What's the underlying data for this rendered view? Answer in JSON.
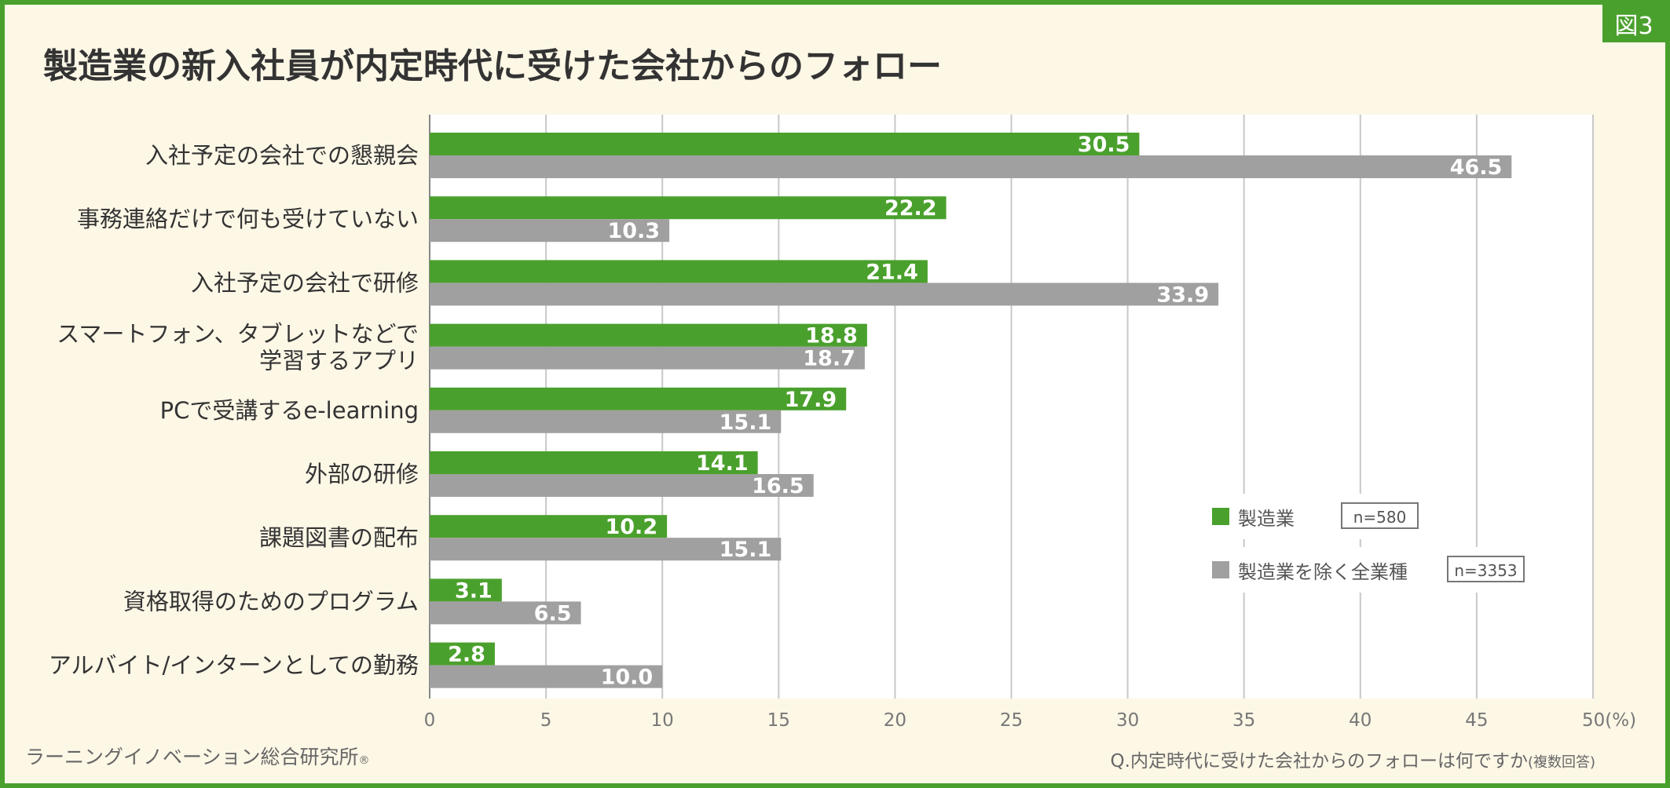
{
  "figure_tag": "図3",
  "title": "製造業の新入社員が内定時代に受けた会社からのフォロー",
  "source": "ラーニングイノベーション総合研究所",
  "source_mark": "®",
  "question": "Q.内定時代に受けた会社からのフォローは何ですか",
  "question_note": "(複数回答)",
  "colors": {
    "accent": "#4aa02c",
    "gray": "#a0a0a0",
    "background": "#fdf7e6"
  },
  "chart_data": {
    "type": "bar",
    "orientation": "horizontal",
    "categories": [
      [
        "入社予定の会社での懇親会"
      ],
      [
        "事務連絡だけで何も受けていない"
      ],
      [
        "入社予定の会社で研修"
      ],
      [
        "スマートフォン、タブレットなどで",
        "学習するアプリ"
      ],
      [
        "PCで受講するe-learning"
      ],
      [
        "外部の研修"
      ],
      [
        "課題図書の配布"
      ],
      [
        "資格取得のためのプログラム"
      ],
      [
        "アルバイト/インターンとしての勤務"
      ]
    ],
    "series": [
      {
        "name": "製造業",
        "n_label": "n=580",
        "color": "#4aa02c",
        "values": [
          30.5,
          22.2,
          21.4,
          18.8,
          17.9,
          14.1,
          10.2,
          3.1,
          2.8
        ],
        "labels": [
          "30.5",
          "22.2",
          "21.4",
          "18.8",
          "17.9",
          "14.1",
          "10.2",
          "3.1",
          "2.8"
        ]
      },
      {
        "name": "製造業を除く全業種",
        "n_label": "n=3353",
        "color": "#a0a0a0",
        "values": [
          46.5,
          10.3,
          33.9,
          18.7,
          15.1,
          16.5,
          15.1,
          6.5,
          10.0
        ],
        "labels": [
          "46.5",
          "10.3",
          "33.9",
          "18.7",
          "15.1",
          "16.5",
          "15.1",
          "6.5",
          "10.0"
        ]
      }
    ],
    "xlim": [
      0,
      50
    ],
    "xticks": [
      "0",
      "5",
      "10",
      "15",
      "20",
      "25",
      "30",
      "35",
      "40",
      "45",
      "50(%)"
    ],
    "grid": true,
    "legend_position": "bottom-right"
  }
}
